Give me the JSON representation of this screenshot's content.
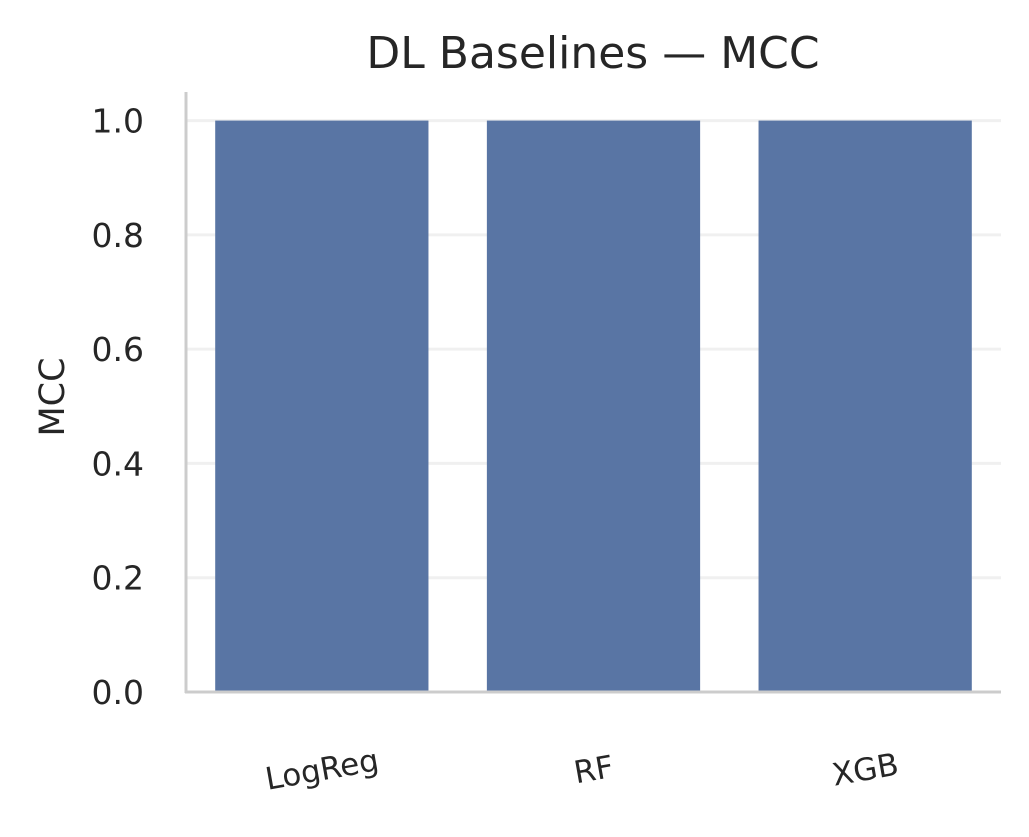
{
  "chart_data": {
    "type": "bar",
    "title": "DL Baselines — MCC",
    "xlabel": "",
    "ylabel": "MCC",
    "categories": [
      "LogReg",
      "RF",
      "XGB"
    ],
    "values": [
      1.0,
      1.0,
      1.0
    ],
    "ylim": [
      0,
      1.05
    ],
    "yticks": [
      "0.0",
      "0.2",
      "0.4",
      "0.6",
      "0.8",
      "1.0"
    ],
    "grid": "horizontal",
    "legend": "none",
    "bar_color": "#5975a4",
    "grid_color": "#f0f0f0",
    "spine_color": "#cccccc"
  }
}
